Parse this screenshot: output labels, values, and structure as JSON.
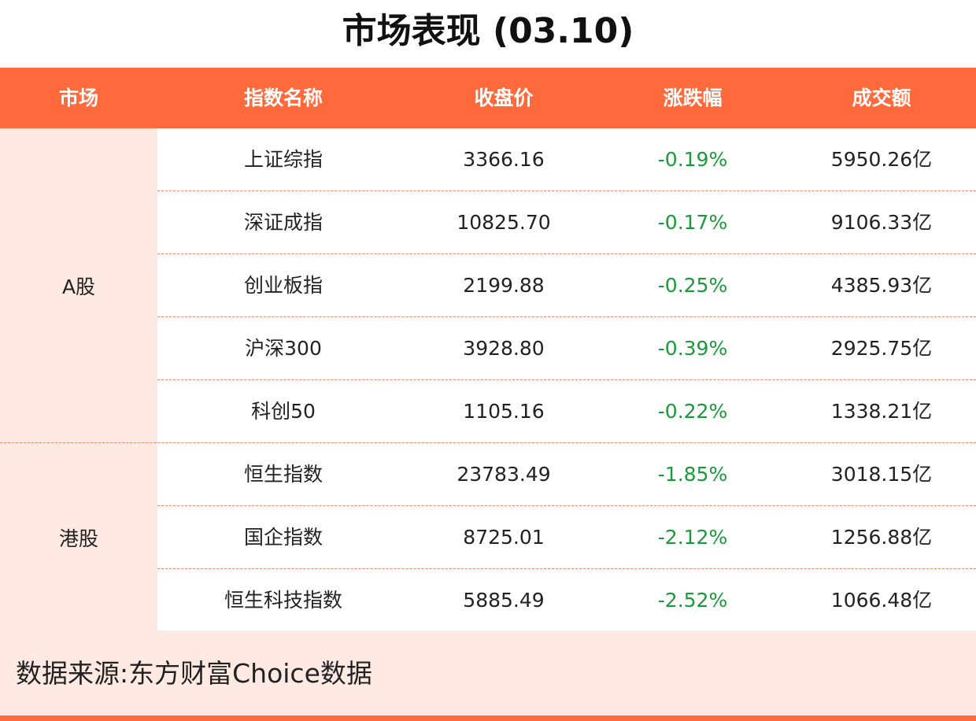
{
  "title": "市场表现 (03.10)",
  "colors": {
    "header_bg": "#ff6a3d",
    "header_text": "#ffffff",
    "panel_bg": "#ffeae3",
    "row_bg": "#ffffff",
    "change_negative": "#1a9a3a",
    "divider": "#f08a6a",
    "bottom_bar": "#ff6a3d"
  },
  "table": {
    "headers": {
      "market": "市场",
      "name": "指数名称",
      "close": "收盘价",
      "change": "涨跌幅",
      "volume": "成交额"
    },
    "groups": [
      {
        "market": "A股",
        "rows": [
          {
            "name": "上证综指",
            "close": "3366.16",
            "change": "-0.19%",
            "volume": "5950.26亿"
          },
          {
            "name": "深证成指",
            "close": "10825.70",
            "change": "-0.17%",
            "volume": "9106.33亿"
          },
          {
            "name": "创业板指",
            "close": "2199.88",
            "change": "-0.25%",
            "volume": "4385.93亿"
          },
          {
            "name": "沪深300",
            "close": "3928.80",
            "change": "-0.39%",
            "volume": "2925.75亿"
          },
          {
            "name": "科创50",
            "close": "1105.16",
            "change": "-0.22%",
            "volume": "1338.21亿"
          }
        ]
      },
      {
        "market": "港股",
        "rows": [
          {
            "name": "恒生指数",
            "close": "23783.49",
            "change": "-1.85%",
            "volume": "3018.15亿"
          },
          {
            "name": "国企指数",
            "close": "8725.01",
            "change": "-2.12%",
            "volume": "1256.88亿"
          },
          {
            "name": "恒生科技指数",
            "close": "5885.49",
            "change": "-2.52%",
            "volume": "1066.48亿"
          }
        ]
      }
    ]
  },
  "footer": {
    "source": "数据来源:东方财富Choice数据"
  }
}
